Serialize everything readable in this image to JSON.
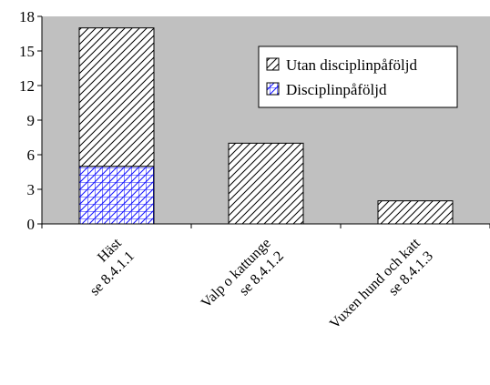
{
  "chart_data": {
    "type": "bar",
    "stacked": true,
    "categories": [
      [
        "Häst",
        "se 8.4.1.1"
      ],
      [
        "Valp o kattunge",
        "se 8.4.1.2"
      ],
      [
        "Vuxen hund och katt",
        "se 8.4.1.3"
      ]
    ],
    "series": [
      {
        "name": "Disciplinpåföljd",
        "values": [
          5,
          0,
          0
        ],
        "color": "#1a1aff"
      },
      {
        "name": "Utan disciplinpåföljd",
        "values": [
          12,
          7,
          2
        ],
        "color": "#000000"
      }
    ],
    "legend_order": [
      1,
      0
    ],
    "yticks": [
      0,
      3,
      6,
      9,
      12,
      15,
      18
    ],
    "ylim": [
      0,
      18
    ],
    "grid": false,
    "plot_background": "#c0c0c0",
    "legend_position": "top-right"
  }
}
